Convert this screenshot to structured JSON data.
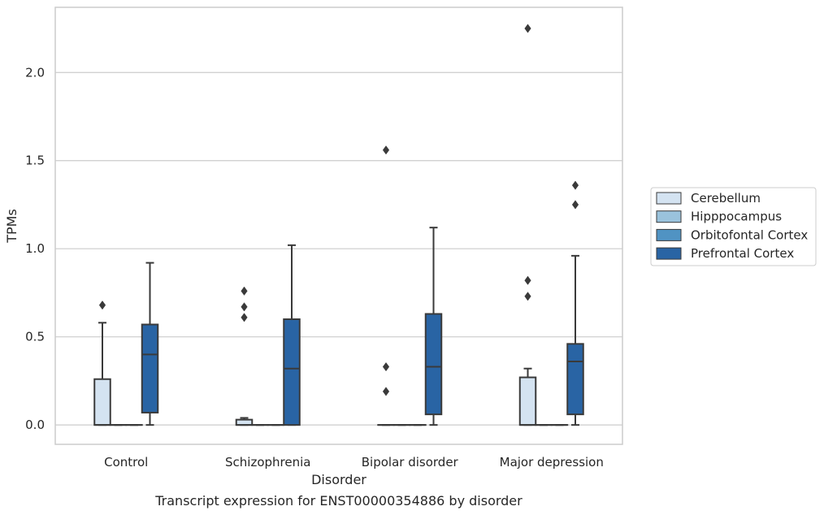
{
  "chart_data": {
    "type": "box",
    "title": "Transcript expression for ENST00000354886 by disorder",
    "xlabel": "Disorder",
    "ylabel": "TPMs",
    "ylim": [
      -0.11,
      2.37
    ],
    "yticks": [
      "0.0",
      "0.5",
      "1.0",
      "1.5",
      "2.0"
    ],
    "grid": "horizontal",
    "legend_position": "right",
    "categories": [
      "Control",
      "Schizophrenia",
      "Bipolar disorder",
      "Major depression"
    ],
    "series": [
      {
        "name": "Cerebellum",
        "color": "#d4e3f1",
        "boxes": [
          {
            "min": 0.0,
            "q1": 0.0,
            "median": 0.0,
            "q3": 0.26,
            "max": 0.58,
            "outliers": [
              0.68
            ]
          },
          {
            "min": 0.0,
            "q1": 0.0,
            "median": 0.0,
            "q3": 0.03,
            "max": 0.04,
            "outliers": [
              0.61,
              0.67,
              0.76
            ]
          },
          {
            "min": 0.0,
            "q1": 0.0,
            "median": 0.0,
            "q3": 0.0,
            "max": 0.0,
            "outliers": [
              0.19,
              0.33,
              1.56
            ]
          },
          {
            "min": 0.0,
            "q1": 0.0,
            "median": 0.0,
            "q3": 0.27,
            "max": 0.32,
            "outliers": [
              0.73,
              0.82,
              2.25
            ]
          }
        ]
      },
      {
        "name": "Hipppocampus",
        "color": "#9ac2dc",
        "boxes": [
          {
            "min": 0.0,
            "q1": 0.0,
            "median": 0.0,
            "q3": 0.0,
            "max": 0.0,
            "outliers": []
          },
          {
            "min": 0.0,
            "q1": 0.0,
            "median": 0.0,
            "q3": 0.0,
            "max": 0.0,
            "outliers": []
          },
          {
            "min": 0.0,
            "q1": 0.0,
            "median": 0.0,
            "q3": 0.0,
            "max": 0.0,
            "outliers": []
          },
          {
            "min": 0.0,
            "q1": 0.0,
            "median": 0.0,
            "q3": 0.0,
            "max": 0.0,
            "outliers": []
          }
        ]
      },
      {
        "name": "Orbitofontal Cortex",
        "color": "#5093c3",
        "boxes": [
          {
            "min": 0.0,
            "q1": 0.0,
            "median": 0.0,
            "q3": 0.0,
            "max": 0.0,
            "outliers": []
          },
          {
            "min": 0.0,
            "q1": 0.0,
            "median": 0.0,
            "q3": 0.0,
            "max": 0.0,
            "outliers": []
          },
          {
            "min": 0.0,
            "q1": 0.0,
            "median": 0.0,
            "q3": 0.0,
            "max": 0.0,
            "outliers": []
          },
          {
            "min": 0.0,
            "q1": 0.0,
            "median": 0.0,
            "q3": 0.0,
            "max": 0.0,
            "outliers": []
          }
        ]
      },
      {
        "name": "Prefrontal Cortex",
        "color": "#2964a4",
        "boxes": [
          {
            "min": 0.0,
            "q1": 0.07,
            "median": 0.4,
            "q3": 0.57,
            "max": 0.92,
            "outliers": []
          },
          {
            "min": 0.0,
            "q1": 0.0,
            "median": 0.32,
            "q3": 0.6,
            "max": 1.02,
            "outliers": []
          },
          {
            "min": 0.0,
            "q1": 0.06,
            "median": 0.33,
            "q3": 0.63,
            "max": 1.12,
            "outliers": []
          },
          {
            "min": 0.0,
            "q1": 0.06,
            "median": 0.36,
            "q3": 0.46,
            "max": 0.96,
            "outliers": [
              1.25,
              1.36
            ]
          }
        ]
      }
    ]
  }
}
